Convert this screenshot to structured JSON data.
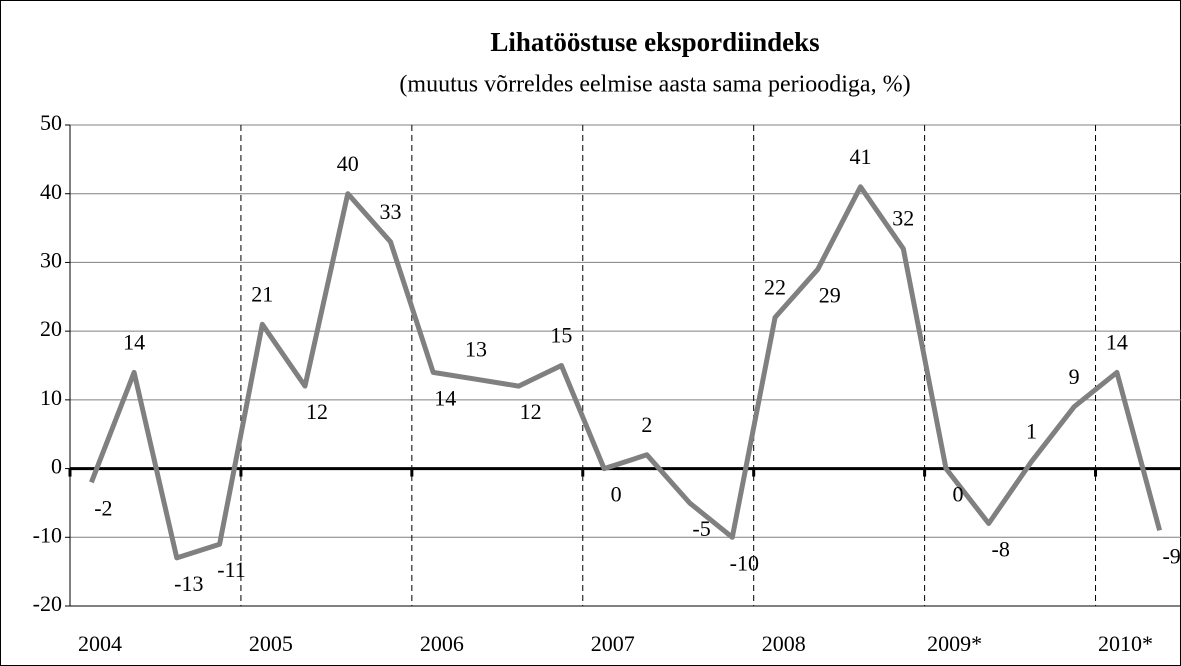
{
  "chart_data": {
    "type": "line",
    "title": "Lihatööstuse ekspordiindeks",
    "subtitle": "(muutus võrreldes eelmise aasta sama perioodiga, %)",
    "categories": [
      "2004",
      null,
      null,
      null,
      "2005",
      null,
      null,
      null,
      "2006",
      null,
      null,
      null,
      "2007",
      null,
      null,
      null,
      "2008",
      null,
      null,
      null,
      "2009*",
      null,
      null,
      null,
      "2010*",
      null
    ],
    "series": [
      {
        "name": "Lihatööstuse ekspordiindeks",
        "color": "#808080",
        "values": [
          -2,
          14,
          -13,
          -11,
          21,
          12,
          40,
          33,
          14,
          13,
          12,
          15,
          0,
          2,
          -5,
          -10,
          22,
          29,
          41,
          32,
          0,
          -8,
          1,
          9,
          14,
          -9
        ]
      }
    ],
    "ylim": [
      -20,
      50
    ],
    "yticks": [
      -20,
      -10,
      0,
      10,
      20,
      30,
      40,
      50
    ],
    "grid": true
  }
}
